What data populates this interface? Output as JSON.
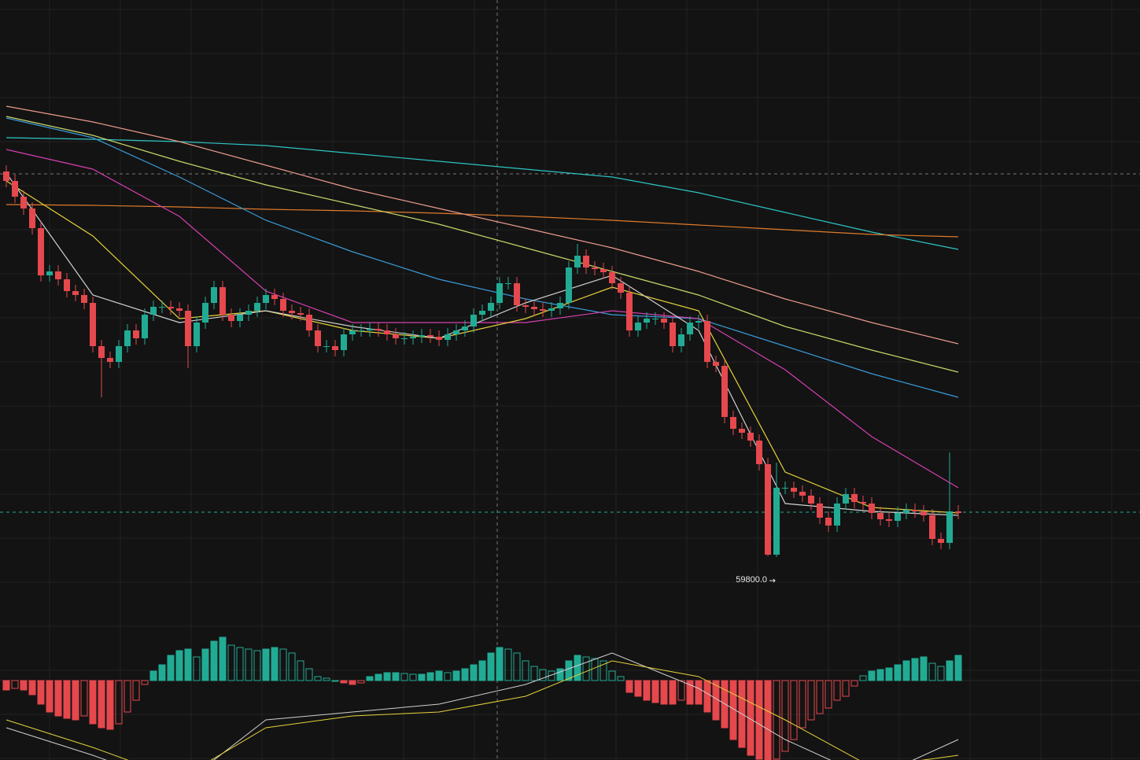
{
  "chart_data": {
    "type": "candlestick",
    "annotation": "59800.0",
    "ylim": [
      57220,
      66880
    ],
    "up_color": "#22ab94",
    "down_color": "#e5484d",
    "open": [
      64700,
      64580,
      64380,
      64230,
      63980,
      63380,
      63430,
      63330,
      63180,
      63130,
      63030,
      62480,
      62330,
      62280,
      62480,
      62680,
      62580,
      62880,
      62980,
      62980,
      62960,
      62930,
      62480,
      62780,
      63030,
      63230,
      62880,
      62800,
      62880,
      62930,
      63030,
      63130,
      63080,
      62930,
      62900,
      62880,
      62680,
      62480,
      62480,
      62430,
      62630,
      62680,
      62680,
      62700,
      62680,
      62630,
      62580,
      62580,
      62600,
      62620,
      62600,
      62560,
      62630,
      62680,
      62730,
      62880,
      62930,
      63030,
      63280,
      63280,
      63000,
      62980,
      62950,
      62930,
      62960,
      63030,
      63480,
      63630,
      63480,
      63460,
      63420,
      63280,
      63160,
      62680,
      62780,
      62830,
      62830,
      62780,
      62480,
      62630,
      62780,
      62800,
      62280,
      62230,
      61580,
      61430,
      61380,
      61280,
      60980,
      59830,
      60680,
      60680,
      60630,
      60580,
      60480,
      60300,
      60200,
      60480,
      60600,
      60500,
      60480,
      60360,
      60280,
      60260,
      60360,
      60400,
      60380,
      60330,
      60030,
      59980,
      60380
    ],
    "high": [
      64780,
      64660,
      64460,
      64310,
      64060,
      63510,
      63510,
      63410,
      63260,
      63210,
      63110,
      62560,
      62410,
      62560,
      62760,
      62760,
      62960,
      63060,
      63060,
      63060,
      63040,
      63010,
      62860,
      63110,
      63310,
      63310,
      62960,
      62960,
      63010,
      63110,
      63210,
      63210,
      63160,
      63010,
      62980,
      62960,
      62760,
      62560,
      62560,
      62710,
      62760,
      62760,
      62780,
      62780,
      62760,
      62710,
      62660,
      62680,
      62700,
      62700,
      62680,
      62710,
      62760,
      62810,
      62960,
      63010,
      63110,
      63360,
      63360,
      63360,
      63080,
      63060,
      63030,
      63040,
      63110,
      63560,
      63780,
      63710,
      63560,
      63540,
      63500,
      63360,
      63240,
      62860,
      62910,
      62910,
      62910,
      62860,
      62710,
      62860,
      62880,
      62880,
      62360,
      62310,
      61660,
      61510,
      61460,
      61360,
      61060,
      61000,
      60760,
      60760,
      60710,
      60660,
      60560,
      60380,
      60560,
      60680,
      60680,
      60580,
      60560,
      60440,
      60360,
      60440,
      60480,
      60480,
      60460,
      60410,
      60110,
      61130,
      60460
    ],
    "low": [
      64500,
      64300,
      64150,
      63900,
      63300,
      63300,
      63250,
      63100,
      63050,
      62950,
      62400,
      61830,
      62200,
      62200,
      62400,
      62500,
      62500,
      62800,
      62900,
      62880,
      62850,
      62200,
      62400,
      62700,
      62950,
      62800,
      62720,
      62720,
      62800,
      62850,
      62950,
      63000,
      62850,
      62820,
      62800,
      62600,
      62400,
      62400,
      62350,
      62350,
      62550,
      62600,
      62600,
      62600,
      62550,
      62500,
      62500,
      62500,
      62520,
      62520,
      62480,
      62480,
      62550,
      62600,
      62650,
      62800,
      62850,
      62950,
      63200,
      62920,
      62900,
      62870,
      62850,
      62850,
      62880,
      62950,
      63400,
      63400,
      63380,
      63340,
      63200,
      63080,
      62600,
      62600,
      62700,
      62750,
      62700,
      62400,
      62400,
      62550,
      62700,
      62200,
      62150,
      61500,
      61350,
      61300,
      61200,
      60900,
      59810,
      59800,
      60600,
      60550,
      60500,
      60400,
      60220,
      60120,
      60120,
      60400,
      60420,
      60400,
      60280,
      60200,
      60180,
      60180,
      60280,
      60300,
      60250,
      59950,
      59900,
      59900,
      60280
    ],
    "close": [
      64580,
      64380,
      64230,
      63980,
      63380,
      63430,
      63330,
      63180,
      63130,
      63030,
      62480,
      62330,
      62280,
      62480,
      62680,
      62580,
      62880,
      62980,
      62980,
      62960,
      62930,
      62480,
      62780,
      63030,
      63230,
      62880,
      62800,
      62880,
      62930,
      63030,
      63130,
      63080,
      62930,
      62900,
      62880,
      62680,
      62480,
      62480,
      62430,
      62630,
      62680,
      62680,
      62700,
      62680,
      62630,
      62580,
      62580,
      62600,
      62620,
      62600,
      62560,
      62630,
      62680,
      62730,
      62880,
      62930,
      63030,
      63280,
      63280,
      63000,
      62980,
      62950,
      62930,
      62960,
      63030,
      63480,
      63630,
      63480,
      63460,
      63420,
      63280,
      63160,
      62680,
      62780,
      62830,
      62830,
      62780,
      62480,
      62630,
      62780,
      62800,
      62280,
      62230,
      61580,
      61430,
      61380,
      61280,
      60980,
      59830,
      60680,
      60680,
      60630,
      60580,
      60480,
      60300,
      60200,
      60480,
      60600,
      60500,
      60480,
      60360,
      60280,
      60260,
      60360,
      60400,
      60380,
      60330,
      60030,
      59980,
      60380,
      60360
    ],
    "ma_series": [
      {
        "color": "#2ec4c4",
        "x": [
          0,
          10,
          20,
          30,
          40,
          50,
          60,
          70,
          80,
          90,
          100,
          110
        ],
        "values": [
          65130,
          65110,
          65080,
          65030,
          64930,
          64830,
          64730,
          64630,
          64430,
          64180,
          63930,
          63710
        ]
      },
      {
        "color": "#e07b2a",
        "x": [
          0,
          10,
          20,
          30,
          40,
          50,
          60,
          70,
          80,
          90,
          100,
          110
        ],
        "values": [
          64280,
          64270,
          64250,
          64220,
          64200,
          64170,
          64130,
          64080,
          64020,
          63960,
          63900,
          63870
        ]
      },
      {
        "color": "#e8998a",
        "x": [
          0,
          10,
          20,
          30,
          40,
          50,
          60,
          70,
          80,
          90,
          100,
          110
        ],
        "values": [
          65530,
          65330,
          65080,
          64780,
          64480,
          64230,
          63980,
          63730,
          63430,
          63080,
          62780,
          62510
        ]
      },
      {
        "color": "#c8d66a",
        "x": [
          0,
          10,
          20,
          30,
          40,
          50,
          60,
          70,
          80,
          90,
          100,
          110
        ],
        "values": [
          65400,
          65160,
          64830,
          64530,
          64280,
          64030,
          63730,
          63430,
          63130,
          62730,
          62430,
          62150
        ]
      },
      {
        "color": "#3a9ad9",
        "x": [
          0,
          10,
          20,
          30,
          40,
          50,
          60,
          70,
          80,
          90,
          100,
          110
        ],
        "values": [
          65380,
          65130,
          64630,
          64080,
          63680,
          63330,
          63080,
          62880,
          62830,
          62480,
          62130,
          61830
        ]
      },
      {
        "color": "#d63fb0",
        "x": [
          0,
          10,
          20,
          30,
          40,
          50,
          60,
          70,
          80,
          90,
          100,
          110
        ],
        "values": [
          64980,
          64730,
          64130,
          63180,
          62780,
          62780,
          62780,
          62930,
          62830,
          62180,
          61330,
          60680
        ]
      },
      {
        "color": "#e6d23a",
        "x": [
          0,
          10,
          20,
          30,
          40,
          50,
          60,
          70,
          80,
          90,
          100,
          110
        ],
        "values": [
          64580,
          63880,
          62830,
          62930,
          62680,
          62580,
          62830,
          63230,
          62930,
          60880,
          60430,
          60360
        ]
      },
      {
        "color": "#d0d0d0",
        "x": [
          0,
          10,
          20,
          30,
          40,
          50,
          60,
          70,
          80,
          90,
          100,
          110
        ],
        "values": [
          64680,
          63130,
          62780,
          62930,
          62730,
          62580,
          63030,
          63380,
          62680,
          60480,
          60380,
          60330
        ]
      }
    ],
    "macd": {
      "ylim": [
        -101,
        55
      ],
      "histogram": [
        -12,
        -10,
        -12,
        -18,
        -30,
        -40,
        -45,
        -48,
        -50,
        -45,
        -55,
        -60,
        -62,
        -55,
        -40,
        -25,
        -5,
        12,
        20,
        32,
        38,
        40,
        30,
        40,
        50,
        55,
        45,
        42,
        40,
        38,
        40,
        42,
        40,
        35,
        25,
        15,
        5,
        3,
        0,
        -3,
        -5,
        -3,
        5,
        8,
        10,
        10,
        9,
        8,
        8,
        10,
        12,
        10,
        12,
        15,
        20,
        25,
        35,
        42,
        40,
        35,
        25,
        18,
        14,
        12,
        15,
        25,
        32,
        30,
        28,
        25,
        12,
        5,
        -15,
        -20,
        -25,
        -28,
        -30,
        -30,
        -25,
        -30,
        -30,
        -40,
        -50,
        -60,
        -75,
        -85,
        -95,
        -100,
        -101,
        -100,
        -90,
        -75,
        -60,
        -50,
        -42,
        -35,
        -25,
        -20,
        -7,
        6,
        12,
        14,
        16,
        20,
        25,
        28,
        30,
        22,
        18,
        25,
        32
      ],
      "lines": [
        {
          "color": "#d0d0d0",
          "x": [
            0,
            10,
            20,
            30,
            40,
            50,
            60,
            70,
            80,
            90,
            100,
            110
          ],
          "values": [
            -60,
            -95,
            -135,
            -50,
            -40,
            -30,
            -5,
            35,
            -10,
            -75,
            -125,
            -75
          ]
        },
        {
          "color": "#e6d23a",
          "x": [
            0,
            10,
            20,
            30,
            40,
            50,
            60,
            70,
            80,
            90,
            100,
            110
          ],
          "values": [
            -50,
            -85,
            -125,
            -60,
            -45,
            -40,
            -20,
            25,
            5,
            -50,
            -110,
            -95
          ]
        }
      ]
    }
  }
}
